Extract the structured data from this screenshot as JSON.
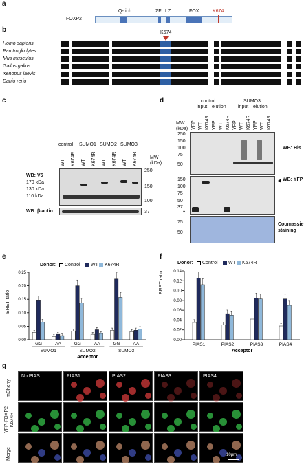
{
  "panels": {
    "a": "a",
    "b": "b",
    "c": "c",
    "d": "d",
    "e": "e",
    "f": "f",
    "g": "g"
  },
  "panel_a": {
    "protein": "FOXP2",
    "domains": [
      "Q-rich",
      "ZF",
      "LZ",
      "FOX"
    ],
    "site": "K674"
  },
  "panel_b": {
    "site": "K674",
    "species": [
      "Homo sapiens",
      "Pan troglodytes",
      "Mus musculus",
      "Gallus gallus",
      "Xenopus laevis",
      "Danio rerio"
    ]
  },
  "panel_c": {
    "groups": [
      "control",
      "SUMO1",
      "SUMO2",
      "SUMO3"
    ],
    "lanes": [
      "WT",
      "K674R",
      "WT",
      "K674R",
      "WT",
      "K674R",
      "WT",
      "K674R"
    ],
    "mw_header": "MW\n(kDa)",
    "mw_markers": [
      "250",
      "150",
      "100",
      "37"
    ],
    "left_markers": [
      "170 kDa",
      "130 kDa",
      "110 kDa"
    ],
    "wb_v5": "WB: V5",
    "wb_actin": "WB: β-actin"
  },
  "panel_d": {
    "groups": [
      "control",
      "SUMO3"
    ],
    "subgroups": [
      "input",
      "elution",
      "input",
      "elution"
    ],
    "lanes": [
      "YFP",
      "WT",
      "K674R",
      "YFP",
      "WT",
      "K674R",
      "YFP",
      "WT",
      "K674R",
      "YFP",
      "WT",
      "K674R"
    ],
    "mw_header": "MW\n(kDa)",
    "mw_top": [
      "250",
      "150",
      "100",
      "75",
      "50"
    ],
    "mw_mid": [
      "150",
      "100",
      "75",
      "50",
      "37"
    ],
    "mw_bottom": [
      "75",
      "50"
    ],
    "wb_his": "WB: His",
    "wb_yfp": "WB: YFP",
    "stain": "Coomassie\nstaining",
    "asterisk": "*"
  },
  "panel_e": {
    "donor_label": "Donor:",
    "legend": [
      "Control",
      "WT",
      "K674R"
    ],
    "ylabel": "BRET ratio",
    "xlabel": "Acceptor",
    "yticks": [
      "0.00",
      "0.05",
      "0.10",
      "0.15",
      "0.20",
      "0.25"
    ],
    "pair_labels": [
      "GG",
      "AA",
      "GG",
      "AA",
      "GG",
      "AA"
    ],
    "group_labels": [
      "SUMO1",
      "SUMO2",
      "SUMO3"
    ]
  },
  "panel_f": {
    "donor_label": "Donor:",
    "legend": [
      "Control",
      "WT",
      "K674R"
    ],
    "ylabel": "BRET ratio",
    "xlabel": "Acceptor",
    "yticks": [
      "0.00",
      "0.02",
      "0.04",
      "0.06",
      "0.08",
      "0.10",
      "0.12",
      "0.14"
    ],
    "group_labels": [
      "PIAS1",
      "PIAS2",
      "PIAS3",
      "PIAS4"
    ]
  },
  "panel_g": {
    "columns": [
      "No PIAS",
      "PIAS1",
      "PIAS2",
      "PIAS3",
      "PIAS4"
    ],
    "rows": [
      "mCherry",
      "YFP-FOXP2\nK674R",
      "Merge"
    ],
    "scale": "10μm"
  },
  "colors": {
    "control": "#ffffff",
    "wt": "#1f2a5c",
    "k674r": "#8fb8da",
    "domain": "#4a74b8",
    "site": "#c0392b"
  },
  "chart_data": [
    {
      "type": "bar",
      "title": "",
      "ylabel": "BRET ratio",
      "xlabel": "Acceptor",
      "ylim": [
        0,
        0.25
      ],
      "categories": [
        "SUMO1 GG",
        "SUMO1 AA",
        "SUMO2 GG",
        "SUMO2 AA",
        "SUMO3 GG",
        "SUMO3 AA"
      ],
      "series": [
        {
          "name": "Control",
          "values": [
            0.027,
            0.012,
            0.032,
            0.02,
            0.035,
            0.03
          ]
        },
        {
          "name": "WT",
          "values": [
            0.145,
            0.02,
            0.2,
            0.037,
            0.225,
            0.035
          ]
        },
        {
          "name": "K674R",
          "values": [
            0.065,
            0.015,
            0.137,
            0.023,
            0.157,
            0.04
          ]
        }
      ]
    },
    {
      "type": "bar",
      "title": "",
      "ylabel": "BRET ratio",
      "xlabel": "Acceptor",
      "ylim": [
        0,
        0.14
      ],
      "categories": [
        "PIAS1",
        "PIAS2",
        "PIAS3",
        "PIAS4"
      ],
      "series": [
        {
          "name": "Control",
          "values": [
            0.035,
            0.03,
            0.042,
            0.028
          ]
        },
        {
          "name": "WT",
          "values": [
            0.125,
            0.053,
            0.085,
            0.083
          ]
        },
        {
          "name": "K674R",
          "values": [
            0.112,
            0.05,
            0.083,
            0.07
          ]
        }
      ]
    }
  ]
}
